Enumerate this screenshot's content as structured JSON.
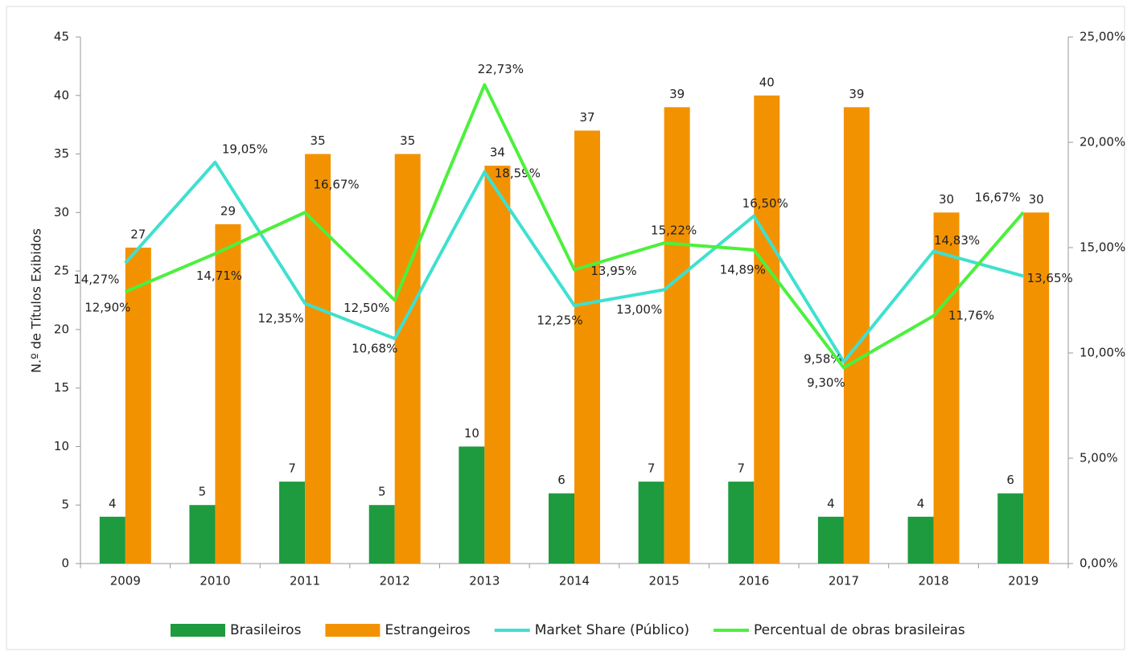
{
  "chart_data": {
    "type": "bar_line",
    "y_label": "N.º de Títulos Exibidos",
    "categories": [
      "2009",
      "2010",
      "2011",
      "2012",
      "2013",
      "2014",
      "2015",
      "2016",
      "2017",
      "2018",
      "2019"
    ],
    "series": [
      {
        "name": "Brasileiros",
        "type": "bar",
        "color": "#1e9a3f",
        "values": [
          4,
          5,
          7,
          5,
          10,
          6,
          7,
          7,
          4,
          4,
          6
        ]
      },
      {
        "name": "Estrangeiros",
        "type": "bar",
        "color": "#f39200",
        "values": [
          27,
          29,
          35,
          35,
          34,
          37,
          39,
          40,
          39,
          30,
          30
        ]
      },
      {
        "name": "Market Share (Público)",
        "type": "line",
        "axis": "y2",
        "color": "#3fe0cf",
        "values": [
          14.27,
          19.05,
          12.35,
          10.68,
          18.59,
          12.25,
          13.0,
          16.5,
          9.58,
          14.83,
          13.65
        ],
        "value_labels": [
          "14,27%",
          "19,05%",
          "12,35%",
          "10,68%",
          "18,59%",
          "12,25%",
          "13,00%",
          "16,50%",
          "9,58%",
          "14,83%",
          "13,65%"
        ]
      },
      {
        "name": "Percentual de obras brasileiras",
        "type": "line",
        "axis": "y2",
        "color": "#4cf03c",
        "values": [
          12.9,
          14.71,
          16.67,
          12.5,
          22.73,
          13.95,
          15.22,
          14.89,
          9.3,
          11.76,
          16.67
        ],
        "value_labels": [
          "12,90%",
          "14,71%",
          "16,67%",
          "12,50%",
          "22,73%",
          "13,95%",
          "15,22%",
          "14,89%",
          "9,30%",
          "11,76%",
          "16,67%"
        ]
      }
    ],
    "ylim": [
      0,
      45
    ],
    "yticks": [
      0,
      5,
      10,
      15,
      20,
      25,
      30,
      35,
      40,
      45
    ],
    "y2lim": [
      0,
      25
    ],
    "y2ticks": [
      {
        "value": 0,
        "label": "0,00%"
      },
      {
        "value": 5,
        "label": "5,00%"
      },
      {
        "value": 10,
        "label": "10,00%"
      },
      {
        "value": 15,
        "label": "15,00%"
      },
      {
        "value": 20,
        "label": "20,00%"
      },
      {
        "value": 25,
        "label": "25,00%"
      }
    ],
    "legend": "bottom"
  }
}
